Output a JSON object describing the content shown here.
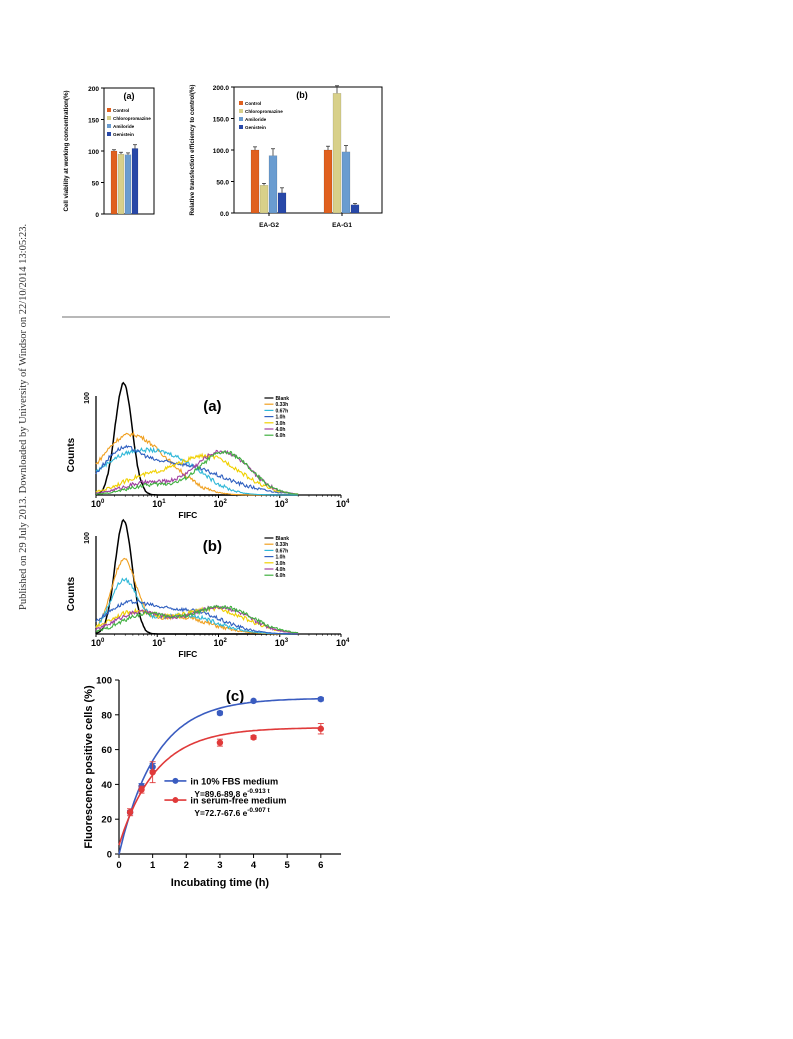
{
  "side_note": "Published on 29 July 2013. Downloaded by University of Windsor on 22/10/2014 13:05:23.",
  "colors": {
    "control": "#e0601e",
    "chlorpromazine": "#d8d08a",
    "amiloride": "#6a9cd0",
    "genistein": "#2848a8",
    "blank": "#000000",
    "t033": "#f0a020",
    "t067": "#30b8d8",
    "t10": "#3060c0",
    "t30": "#f0d000",
    "t40": "#a040a0",
    "t60": "#40b040",
    "fbs": "#3a5cc0",
    "serum_free": "#e03a3a"
  },
  "chart_data": [
    {
      "id": "a-top",
      "type": "bar",
      "panel_label": "(a)",
      "ylabel": "Cell viability at working concentration(%)",
      "ylim": [
        0,
        200
      ],
      "yticks": [
        "0",
        "50",
        "100",
        "150",
        "200"
      ],
      "legend": [
        "Control",
        "Chloropromazine",
        "Amiloride",
        "Genistein"
      ],
      "series": [
        {
          "name": "Control",
          "values": [
            100
          ],
          "errors": [
            2
          ]
        },
        {
          "name": "Chloropromazine",
          "values": [
            95
          ],
          "errors": [
            3
          ]
        },
        {
          "name": "Amiloride",
          "values": [
            94
          ],
          "errors": [
            3
          ]
        },
        {
          "name": "Genistein",
          "values": [
            104
          ],
          "errors": [
            6
          ]
        }
      ]
    },
    {
      "id": "b-top",
      "type": "bar",
      "panel_label": "(b)",
      "ylabel": "Relative transfection efficiency to control(%)",
      "ylim": [
        0,
        200
      ],
      "yticks": [
        "0.0",
        "50.0",
        "100.0",
        "150.0",
        "200.0"
      ],
      "categories": [
        "EA-G2",
        "EA-G1"
      ],
      "legend": [
        "Control",
        "Chloropromazine",
        "Amiloride",
        "Genistein"
      ],
      "series": [
        {
          "name": "Control",
          "values": [
            100,
            100
          ],
          "errors": [
            5,
            6
          ]
        },
        {
          "name": "Chloropromazine",
          "values": [
            44,
            190
          ],
          "errors": [
            3,
            12
          ]
        },
        {
          "name": "Amiloride",
          "values": [
            91,
            97
          ],
          "errors": [
            11,
            10
          ]
        },
        {
          "name": "Genistein",
          "values": [
            32,
            13
          ],
          "errors": [
            8,
            2
          ]
        }
      ]
    },
    {
      "id": "hist-a",
      "type": "line",
      "panel_label": "(a)",
      "xlabel": "FIFC",
      "ylabel": "Counts",
      "ytick_top": "100",
      "xscale": "log",
      "xticks": [
        {
          "base": "10",
          "exp": "0"
        },
        {
          "base": "10",
          "exp": "1"
        },
        {
          "base": "10",
          "exp": "2"
        },
        {
          "base": "10",
          "exp": "3"
        },
        {
          "base": "10",
          "exp": "4"
        }
      ],
      "legend": [
        "Blank",
        "0.33h",
        "0.67h",
        "1.0h",
        "3.0h",
        "4.0h",
        "6.0h"
      ],
      "series": [
        {
          "name": "Blank",
          "peak_log": 0.45,
          "height": 115,
          "width": 0.14
        },
        {
          "name": "0.33h",
          "peak_log": 0.5,
          "height": 58,
          "width": 0.45,
          "shoulder": [
            1.2,
            18,
            0.4
          ]
        },
        {
          "name": "0.67h",
          "peak_log": 0.55,
          "height": 40,
          "width": 0.55,
          "shoulder": [
            1.4,
            25,
            0.45
          ]
        },
        {
          "name": "1.0h",
          "peak_log": 1.2,
          "height": 33,
          "width": 0.8,
          "shoulder": [
            0.4,
            28,
            0.3
          ]
        },
        {
          "name": "3.0h",
          "peak_log": 1.8,
          "height": 40,
          "width": 0.55,
          "shoulder": [
            0.7,
            14,
            0.4
          ]
        },
        {
          "name": "4.0h",
          "peak_log": 2.05,
          "height": 45,
          "width": 0.45,
          "shoulder": [
            0.8,
            12,
            0.4
          ]
        },
        {
          "name": "6.0h",
          "peak_log": 2.1,
          "height": 44,
          "width": 0.42,
          "shoulder": [
            0.9,
            10,
            0.4
          ]
        }
      ]
    },
    {
      "id": "hist-b",
      "type": "line",
      "panel_label": "(b)",
      "xlabel": "FIFC",
      "ylabel": "Counts",
      "ytick_top": "100",
      "xscale": "log",
      "xticks": [
        {
          "base": "10",
          "exp": "0"
        },
        {
          "base": "10",
          "exp": "1"
        },
        {
          "base": "10",
          "exp": "2"
        },
        {
          "base": "10",
          "exp": "3"
        },
        {
          "base": "10",
          "exp": "4"
        }
      ],
      "legend": [
        "Blank",
        "0.33h",
        "0.67h",
        "1.0h",
        "3.0h",
        "4.0h",
        "6.0h"
      ],
      "series": [
        {
          "name": "Blank",
          "peak_log": 0.45,
          "height": 118,
          "width": 0.14
        },
        {
          "name": "0.33h",
          "peak_log": 0.45,
          "height": 72,
          "width": 0.2,
          "shoulder": [
            1.3,
            18,
            0.55
          ]
        },
        {
          "name": "0.67h",
          "peak_log": 0.45,
          "height": 52,
          "width": 0.22,
          "shoulder": [
            1.4,
            20,
            0.55
          ]
        },
        {
          "name": "1.0h",
          "peak_log": 0.5,
          "height": 28,
          "width": 0.4,
          "shoulder": [
            1.5,
            24,
            0.55
          ]
        },
        {
          "name": "3.0h",
          "peak_log": 1.9,
          "height": 26,
          "width": 0.55,
          "shoulder": [
            0.6,
            22,
            0.4
          ]
        },
        {
          "name": "4.0h",
          "peak_log": 2.0,
          "height": 28,
          "width": 0.5,
          "shoulder": [
            0.7,
            22,
            0.4
          ]
        },
        {
          "name": "6.0h",
          "peak_log": 2.05,
          "height": 28,
          "width": 0.5,
          "shoulder": [
            0.8,
            20,
            0.4
          ]
        }
      ]
    },
    {
      "id": "c-panel",
      "type": "scatter",
      "panel_label": "(c)",
      "xlabel": "Incubating time (h)",
      "ylabel": "Fluorescence positive cells (%)",
      "xlim": [
        0,
        6.6
      ],
      "ylim": [
        0,
        100
      ],
      "xticks": [
        "0",
        "1",
        "2",
        "3",
        "4",
        "5",
        "6"
      ],
      "yticks": [
        "0",
        "20",
        "40",
        "60",
        "80",
        "100"
      ],
      "series": [
        {
          "name": "in 10% FBS  medium",
          "equation": "Y=89.6-89.8 e",
          "exponent": "-0.913 t",
          "fit": [
            89.6,
            89.8,
            0.913
          ],
          "x": [
            0.33,
            0.67,
            1.0,
            3.0,
            4.0,
            6.0
          ],
          "y": [
            24,
            39,
            50,
            81,
            88,
            89
          ],
          "errors": [
            1,
            1.5,
            2,
            1,
            0.5,
            1
          ]
        },
        {
          "name": "in serum-free  medium",
          "equation": "Y=72.7-67.6 e",
          "exponent": "-0.907 t",
          "fit": [
            72.7,
            67.6,
            0.907
          ],
          "x": [
            0.33,
            0.67,
            1.0,
            3.0,
            4.0,
            6.0
          ],
          "y": [
            24,
            37,
            47,
            64,
            67,
            72
          ],
          "errors": [
            2,
            2,
            6,
            2,
            1,
            3
          ]
        }
      ]
    }
  ]
}
